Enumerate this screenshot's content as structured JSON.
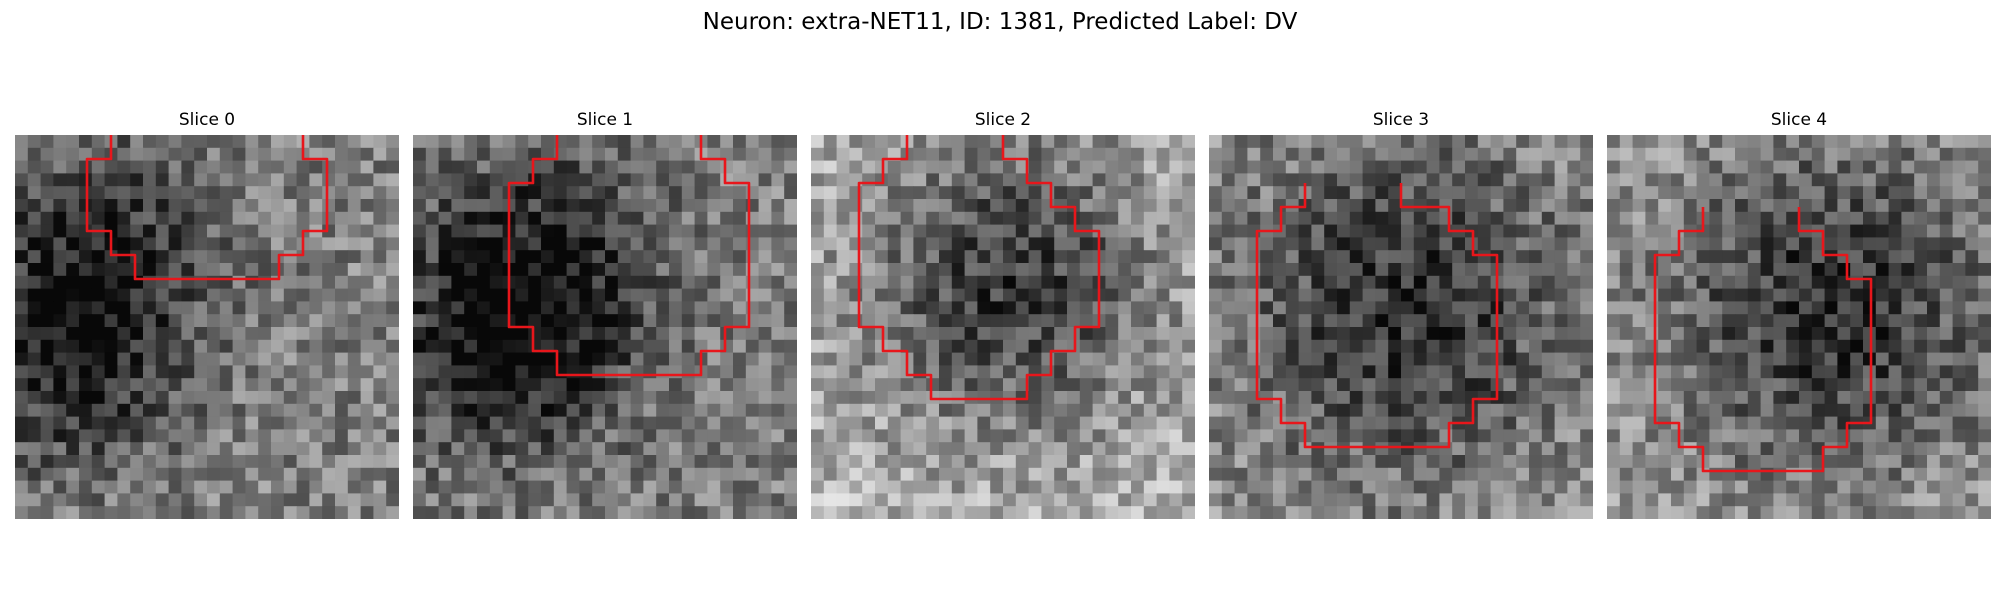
{
  "figure": {
    "title": "Neuron: extra-NET11, ID: 1381, Predicted Label: DV"
  },
  "style": {
    "contour_color": "#e8161b"
  },
  "panels": [
    {
      "title": "Slice 0",
      "contour": [
        [
          4,
          0
        ],
        [
          4,
          1
        ],
        [
          3,
          1
        ],
        [
          3,
          4
        ],
        [
          4,
          4
        ],
        [
          4,
          5
        ],
        [
          5,
          5
        ],
        [
          5,
          6
        ],
        [
          11,
          6
        ],
        [
          11,
          5
        ],
        [
          12,
          5
        ],
        [
          12,
          4
        ],
        [
          13,
          4
        ],
        [
          13,
          1
        ],
        [
          12,
          1
        ],
        [
          12,
          0
        ]
      ]
    },
    {
      "title": "Slice 1",
      "contour": [
        [
          6,
          0
        ],
        [
          6,
          1
        ],
        [
          5,
          1
        ],
        [
          5,
          2
        ],
        [
          4,
          2
        ],
        [
          4,
          8
        ],
        [
          5,
          8
        ],
        [
          5,
          9
        ],
        [
          6,
          9
        ],
        [
          6,
          10
        ],
        [
          12,
          10
        ],
        [
          12,
          9
        ],
        [
          13,
          9
        ],
        [
          13,
          8
        ],
        [
          14,
          8
        ],
        [
          14,
          2
        ],
        [
          13,
          2
        ],
        [
          13,
          1
        ],
        [
          12,
          1
        ],
        [
          12,
          0
        ]
      ]
    },
    {
      "title": "Slice 2",
      "contour": [
        [
          4,
          0
        ],
        [
          4,
          1
        ],
        [
          3,
          1
        ],
        [
          3,
          2
        ],
        [
          2,
          2
        ],
        [
          2,
          8
        ],
        [
          3,
          8
        ],
        [
          3,
          9
        ],
        [
          4,
          9
        ],
        [
          4,
          10
        ],
        [
          5,
          10
        ],
        [
          5,
          11
        ],
        [
          9,
          11
        ],
        [
          9,
          10
        ],
        [
          10,
          10
        ],
        [
          10,
          9
        ],
        [
          11,
          9
        ],
        [
          11,
          8
        ],
        [
          12,
          8
        ],
        [
          12,
          4
        ],
        [
          11,
          4
        ],
        [
          11,
          3
        ],
        [
          10,
          3
        ],
        [
          10,
          2
        ],
        [
          9,
          2
        ],
        [
          9,
          1
        ],
        [
          8,
          1
        ],
        [
          8,
          0
        ]
      ]
    },
    {
      "title": "Slice 3",
      "contour": [
        [
          4,
          2
        ],
        [
          4,
          3
        ],
        [
          3,
          3
        ],
        [
          3,
          4
        ],
        [
          2,
          4
        ],
        [
          2,
          11
        ],
        [
          3,
          11
        ],
        [
          3,
          12
        ],
        [
          4,
          12
        ],
        [
          4,
          13
        ],
        [
          10,
          13
        ],
        [
          10,
          12
        ],
        [
          11,
          12
        ],
        [
          11,
          11
        ],
        [
          12,
          11
        ],
        [
          12,
          5
        ],
        [
          11,
          5
        ],
        [
          11,
          4
        ],
        [
          10,
          4
        ],
        [
          10,
          3
        ],
        [
          8,
          3
        ],
        [
          8,
          2
        ]
      ]
    },
    {
      "title": "Slice 4",
      "contour": [
        [
          4,
          3
        ],
        [
          4,
          4
        ],
        [
          3,
          4
        ],
        [
          3,
          5
        ],
        [
          2,
          5
        ],
        [
          2,
          12
        ],
        [
          3,
          12
        ],
        [
          3,
          13
        ],
        [
          4,
          13
        ],
        [
          4,
          14
        ],
        [
          9,
          14
        ],
        [
          9,
          13
        ],
        [
          10,
          13
        ],
        [
          10,
          12
        ],
        [
          11,
          12
        ],
        [
          11,
          6
        ],
        [
          10,
          6
        ],
        [
          10,
          5
        ],
        [
          9,
          5
        ],
        [
          9,
          4
        ],
        [
          8,
          4
        ],
        [
          8,
          3
        ]
      ]
    }
  ]
}
